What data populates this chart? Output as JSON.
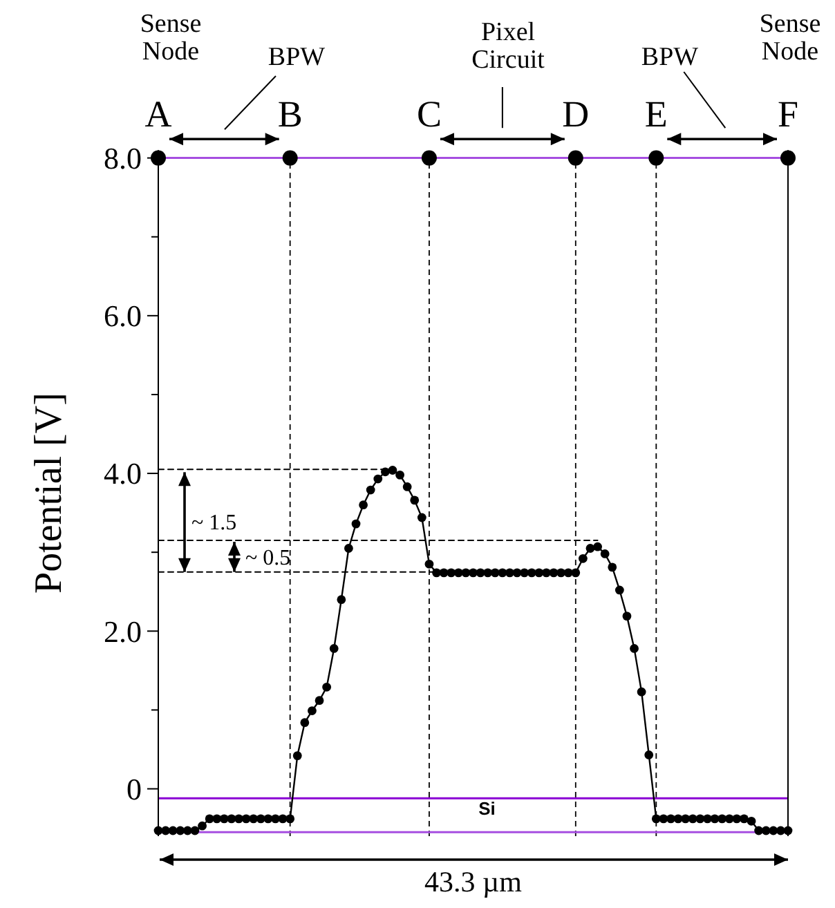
{
  "chart_data": {
    "type": "line",
    "ylabel": "Potential [V]",
    "categories": [
      "A",
      null,
      null,
      null,
      null,
      null,
      null,
      null,
      null,
      null,
      null,
      null,
      null,
      null,
      null,
      null,
      null,
      null,
      "B",
      null,
      null,
      null,
      null,
      null,
      null,
      null,
      null,
      null,
      null,
      null,
      null,
      null,
      null,
      null,
      null,
      null,
      null,
      "C",
      null,
      null,
      null,
      null,
      null,
      null,
      null,
      null,
      null,
      null,
      null,
      null,
      null,
      null,
      null,
      null,
      null,
      null,
      null,
      "D",
      null,
      null,
      null,
      null,
      null,
      null,
      null,
      null,
      null,
      null,
      "E",
      null,
      null,
      null,
      null,
      null,
      null,
      null,
      null,
      null,
      null,
      null,
      null,
      null,
      null,
      null,
      null,
      null,
      "F"
    ],
    "ylim": [
      -0.6,
      8.1
    ],
    "yticks": [
      {
        "value": 0,
        "label": "0"
      },
      {
        "value": 1,
        "label": null
      },
      {
        "value": 2,
        "label": "2.0"
      },
      {
        "value": 3,
        "label": null
      },
      {
        "value": 4,
        "label": "4.0"
      },
      {
        "value": 5,
        "label": null
      },
      {
        "value": 6,
        "label": "6.0"
      },
      {
        "value": 7,
        "label": null
      },
      {
        "value": 8,
        "label": "8.0"
      }
    ],
    "grid": false,
    "series": [
      {
        "type": "line",
        "marker": "circle",
        "line_style": "solid",
        "color": "#000000",
        "values": [
          -0.53,
          -0.53,
          -0.53,
          -0.53,
          -0.53,
          -0.53,
          -0.47,
          -0.38,
          -0.38,
          -0.38,
          -0.38,
          -0.38,
          -0.38,
          -0.38,
          -0.38,
          -0.38,
          -0.38,
          -0.38,
          -0.38,
          0.42,
          0.84,
          0.99,
          1.12,
          1.29,
          1.78,
          2.4,
          3.05,
          3.36,
          3.6,
          3.79,
          3.93,
          4.02,
          4.04,
          3.98,
          3.83,
          3.66,
          3.44,
          2.85,
          2.74,
          2.74,
          2.74,
          2.74,
          2.74,
          2.74,
          2.74,
          2.74,
          2.74,
          2.74,
          2.74,
          2.74,
          2.74,
          2.74,
          2.74,
          2.74,
          2.74,
          2.74,
          2.74,
          2.74,
          2.92,
          3.05,
          3.07,
          2.98,
          2.81,
          2.52,
          2.19,
          1.78,
          1.23,
          0.43,
          -0.38,
          -0.38,
          -0.38,
          -0.38,
          -0.38,
          -0.38,
          -0.38,
          -0.38,
          -0.38,
          -0.38,
          -0.38,
          -0.38,
          -0.38,
          -0.41,
          -0.53,
          -0.53,
          -0.53,
          -0.53,
          -0.53
        ]
      },
      {
        "type": "line",
        "marker": "none",
        "line_style": "dashed",
        "color": "#000000",
        "values": [
          4.05,
          4.05,
          4.05,
          4.05,
          4.05,
          4.05,
          4.05,
          4.05,
          4.05,
          4.05,
          4.05,
          4.05,
          4.05,
          4.05,
          4.05,
          4.05,
          4.05,
          4.05,
          4.05,
          4.05,
          4.05,
          4.05,
          4.05,
          4.05,
          4.05,
          4.05,
          4.05,
          4.05,
          4.05,
          4.05,
          4.05,
          4.05,
          4.05,
          null,
          null,
          null,
          null,
          null,
          null,
          null,
          null,
          null,
          null,
          null,
          null,
          null,
          null,
          null,
          null,
          null,
          null,
          null,
          null,
          null,
          null,
          null,
          null,
          null,
          null,
          null,
          null,
          null,
          null,
          null,
          null,
          null,
          null,
          null,
          null,
          null,
          null,
          null,
          null,
          null,
          null,
          null,
          null,
          null,
          null,
          null,
          null,
          null,
          null,
          null,
          null,
          null,
          null
        ]
      },
      {
        "type": "line",
        "marker": "none",
        "line_style": "dashed",
        "color": "#000000",
        "values": [
          3.15,
          3.15,
          3.15,
          3.15,
          3.15,
          3.15,
          3.15,
          3.15,
          3.15,
          3.15,
          3.15,
          3.15,
          3.15,
          3.15,
          3.15,
          3.15,
          3.15,
          3.15,
          3.15,
          3.15,
          3.15,
          3.15,
          3.15,
          3.15,
          3.15,
          3.15,
          3.15,
          3.15,
          3.15,
          3.15,
          3.15,
          3.15,
          3.15,
          3.15,
          3.15,
          3.15,
          3.15,
          3.15,
          3.15,
          3.15,
          3.15,
          3.15,
          3.15,
          3.15,
          3.15,
          3.15,
          3.15,
          3.15,
          3.15,
          3.15,
          3.15,
          3.15,
          3.15,
          3.15,
          3.15,
          3.15,
          3.15,
          3.15,
          3.15,
          3.15,
          3.15,
          null,
          null,
          null,
          null,
          null,
          null,
          null,
          null,
          null,
          null,
          null,
          null,
          null,
          null,
          null,
          null,
          null,
          null,
          null,
          null,
          null,
          null,
          null,
          null,
          null,
          null
        ]
      },
      {
        "type": "line",
        "marker": "none",
        "line_style": "dashed",
        "color": "#000000",
        "values": [
          2.75,
          2.75,
          2.75,
          2.75,
          2.75,
          2.75,
          2.75,
          2.75,
          2.75,
          2.75,
          2.75,
          2.75,
          2.75,
          2.75,
          2.75,
          2.75,
          2.75,
          2.75,
          2.75,
          2.75,
          2.75,
          2.75,
          2.75,
          2.75,
          2.75,
          2.75,
          2.75,
          2.75,
          2.75,
          2.75,
          2.75,
          2.75,
          2.75,
          2.75,
          2.75,
          2.75,
          2.75,
          2.75,
          2.75,
          null,
          null,
          null,
          null,
          null,
          null,
          null,
          null,
          null,
          null,
          null,
          null,
          null,
          null,
          null,
          null,
          null,
          null,
          null,
          null,
          null,
          null,
          null,
          null,
          null,
          null,
          null,
          null,
          null,
          null,
          null,
          null,
          null,
          null,
          null,
          null,
          null,
          null,
          null,
          null,
          null,
          null,
          null,
          null,
          null,
          null,
          null,
          null
        ]
      },
      {
        "type": "scatter",
        "marker": "circle",
        "color": "#000000",
        "values": [
          8,
          null,
          null,
          null,
          null,
          null,
          null,
          null,
          null,
          null,
          null,
          null,
          null,
          null,
          null,
          null,
          null,
          null,
          8,
          null,
          null,
          null,
          null,
          null,
          null,
          null,
          null,
          null,
          null,
          null,
          null,
          null,
          null,
          null,
          null,
          null,
          null,
          8,
          null,
          null,
          null,
          null,
          null,
          null,
          null,
          null,
          null,
          null,
          null,
          null,
          null,
          null,
          null,
          null,
          null,
          null,
          null,
          8,
          null,
          null,
          null,
          null,
          null,
          null,
          null,
          null,
          null,
          null,
          8,
          null,
          null,
          null,
          null,
          null,
          null,
          null,
          null,
          null,
          null,
          null,
          null,
          null,
          null,
          null,
          null,
          null,
          8
        ]
      }
    ],
    "ref_lines": [
      {
        "axis": "x",
        "value": "B",
        "color": "#000000",
        "line_style": "dashed"
      },
      {
        "axis": "x",
        "value": "C",
        "color": "#000000",
        "line_style": "dashed"
      },
      {
        "axis": "x",
        "value": "D",
        "color": "#000000",
        "line_style": "dashed"
      },
      {
        "axis": "x",
        "value": "E",
        "color": "#000000",
        "line_style": "dashed"
      },
      {
        "axis": "y",
        "value": 8.0,
        "color": "#a64ee0",
        "line_style": "solid"
      },
      {
        "axis": "y",
        "value": -0.12,
        "label": "Si",
        "color": "#8a00d4",
        "line_style": "solid"
      },
      {
        "axis": "y",
        "value": -0.55,
        "color": "#a64ee0",
        "line_style": "solid"
      }
    ],
    "annotations": [
      "Sense Node",
      "BPW",
      "Pixel Circuit",
      "BPW",
      "Sense Node",
      "~ 1.5",
      "~ 0.5",
      "43.3 µm"
    ]
  }
}
